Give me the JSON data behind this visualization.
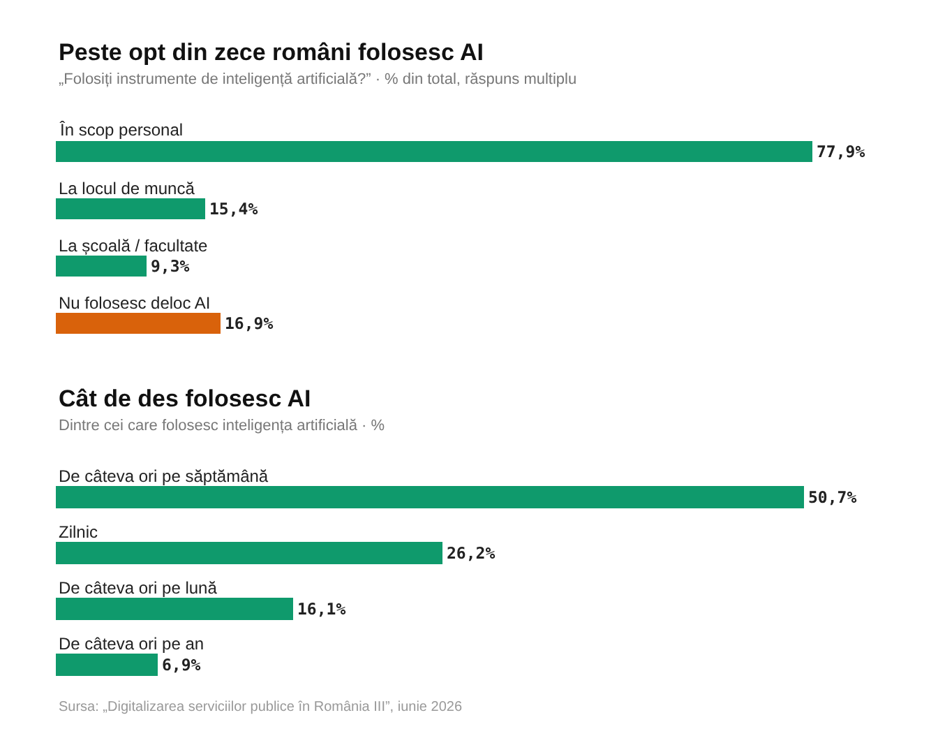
{
  "chart_data": [
    {
      "type": "bar",
      "orientation": "horizontal",
      "title": "Peste opt din zece români folosesc AI",
      "subtitle": "„Folosiți instrumente de inteligență artificială?” · % din total, răspuns multiplu",
      "categories": [
        "În scop personal",
        "La locul de muncă",
        "La școală / facultate",
        "Nu folosesc deloc AI"
      ],
      "values": [
        77.9,
        15.4,
        9.3,
        16.9
      ],
      "colors": [
        "#0f9a6c",
        "#0f9a6c",
        "#0f9a6c",
        "#d9620b"
      ],
      "value_labels": [
        "77,9%",
        "15,4%",
        "9,3%",
        "16,9%"
      ],
      "tick_labels": false
    },
    {
      "type": "bar",
      "orientation": "horizontal",
      "title": "Cât de des folosesc AI",
      "subtitle": "Dintre cei care folosesc inteligența artificială · %",
      "categories": [
        "De câteva ori pe săptămână",
        "Zilnic",
        "De câteva ori pe lună",
        "De câteva ori pe an"
      ],
      "values": [
        50.7,
        26.2,
        16.1,
        6.9
      ],
      "colors": [
        "#0f9a6c",
        "#0f9a6c",
        "#0f9a6c",
        "#0f9a6c"
      ],
      "value_labels": [
        "50,7%",
        "26,2%",
        "16,1%",
        "6,9%"
      ],
      "tick_labels": false,
      "annotations": [
        "Sursa: „Digitalizarea serviciilor publice în România III”, iunie 2026"
      ]
    }
  ]
}
